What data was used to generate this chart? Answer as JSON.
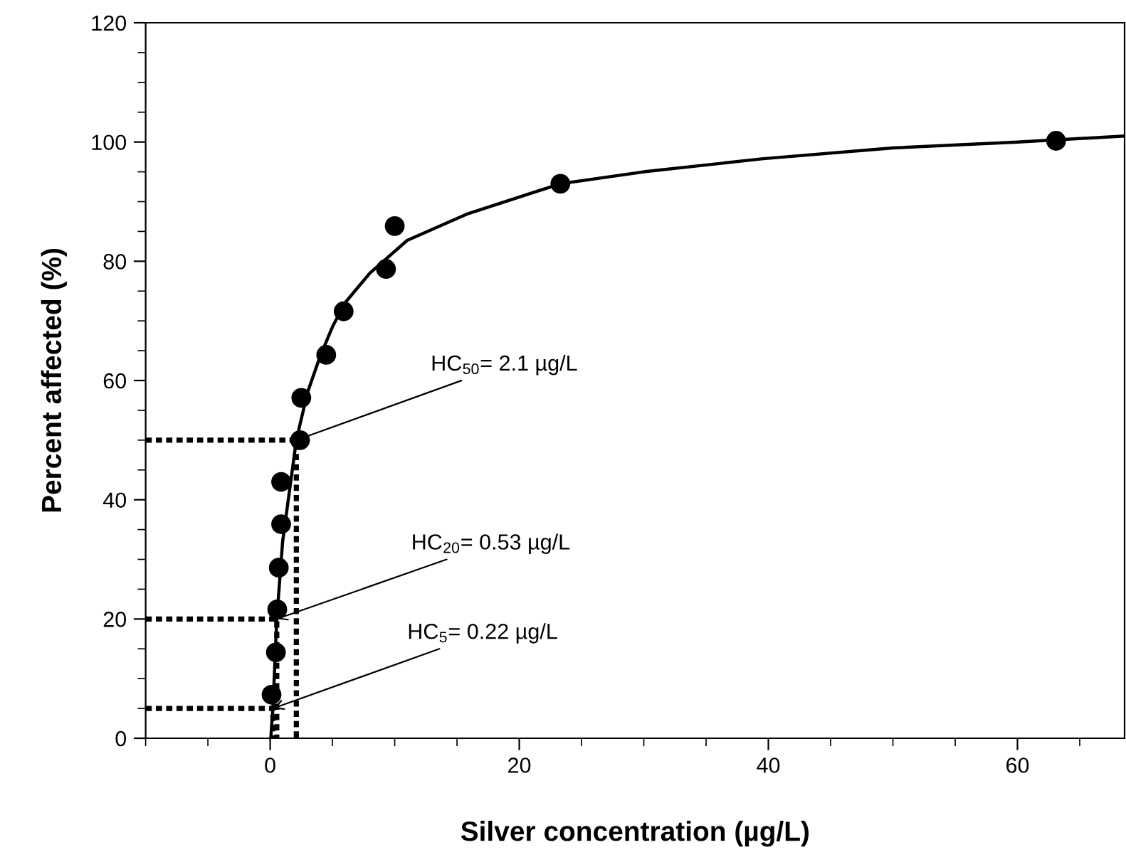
{
  "chart_data": {
    "type": "scatter",
    "xlabel": "Silver concentration (µg/L)",
    "ylabel": "Percent affected (%)",
    "xlim": [
      -10,
      68.6
    ],
    "xticks": [
      0,
      20,
      40,
      60
    ],
    "ylim": [
      0,
      120
    ],
    "yticks": [
      0,
      20,
      40,
      60,
      80,
      100,
      120
    ],
    "grid": false,
    "marker": "circle",
    "series": [
      {
        "color": "#000000",
        "x": [
          0.11,
          0.46,
          0.57,
          0.69,
          0.88,
          0.88,
          2.4,
          2.5,
          4.5,
          5.9,
          9.3,
          10.0,
          23.3,
          63.1
        ],
        "values": [
          7.3,
          14.4,
          21.6,
          28.6,
          35.9,
          43.0,
          50.0,
          57.1,
          64.3,
          71.6,
          78.7,
          85.9,
          93.0,
          100.2
        ]
      },
      {
        "type": "line",
        "color": "#000000",
        "line_style": "solid",
        "marker": "none",
        "x": [
          0.05,
          0.22,
          0.53,
          1,
          2.1,
          3,
          4,
          5,
          6,
          8,
          11,
          15.9,
          23.3,
          30,
          39.6,
          50,
          60,
          68.6
        ],
        "values": [
          0,
          5,
          20,
          33,
          50,
          58,
          64,
          69,
          73,
          78,
          83.5,
          88,
          93,
          95,
          97.2,
          99,
          100,
          101
        ]
      },
      {
        "type": "line",
        "color": "#000000",
        "line_style": "dotted",
        "marker": "none",
        "x": [
          -10,
          2.1,
          2.1
        ],
        "values": [
          50,
          50,
          0
        ]
      },
      {
        "type": "line",
        "color": "#000000",
        "line_style": "dotted",
        "marker": "none",
        "x": [
          -10,
          0.53,
          0.53
        ],
        "values": [
          20,
          20,
          0
        ]
      },
      {
        "type": "line",
        "color": "#000000",
        "line_style": "dotted",
        "marker": "none",
        "x": [
          -10,
          0.22,
          0.22
        ],
        "values": [
          5,
          5,
          0
        ]
      }
    ],
    "annotations": [
      {
        "text": "HC$_{50}$= 2.1 µg/L",
        "x": 2.1,
        "y": 50
      },
      {
        "text": "HC$_{20}$= 0.53 µg/L",
        "x": 0.53,
        "y": 20
      },
      {
        "text": "HC$_{5}$= 0.22 µg/L",
        "x": 0.22,
        "y": 5
      }
    ]
  }
}
